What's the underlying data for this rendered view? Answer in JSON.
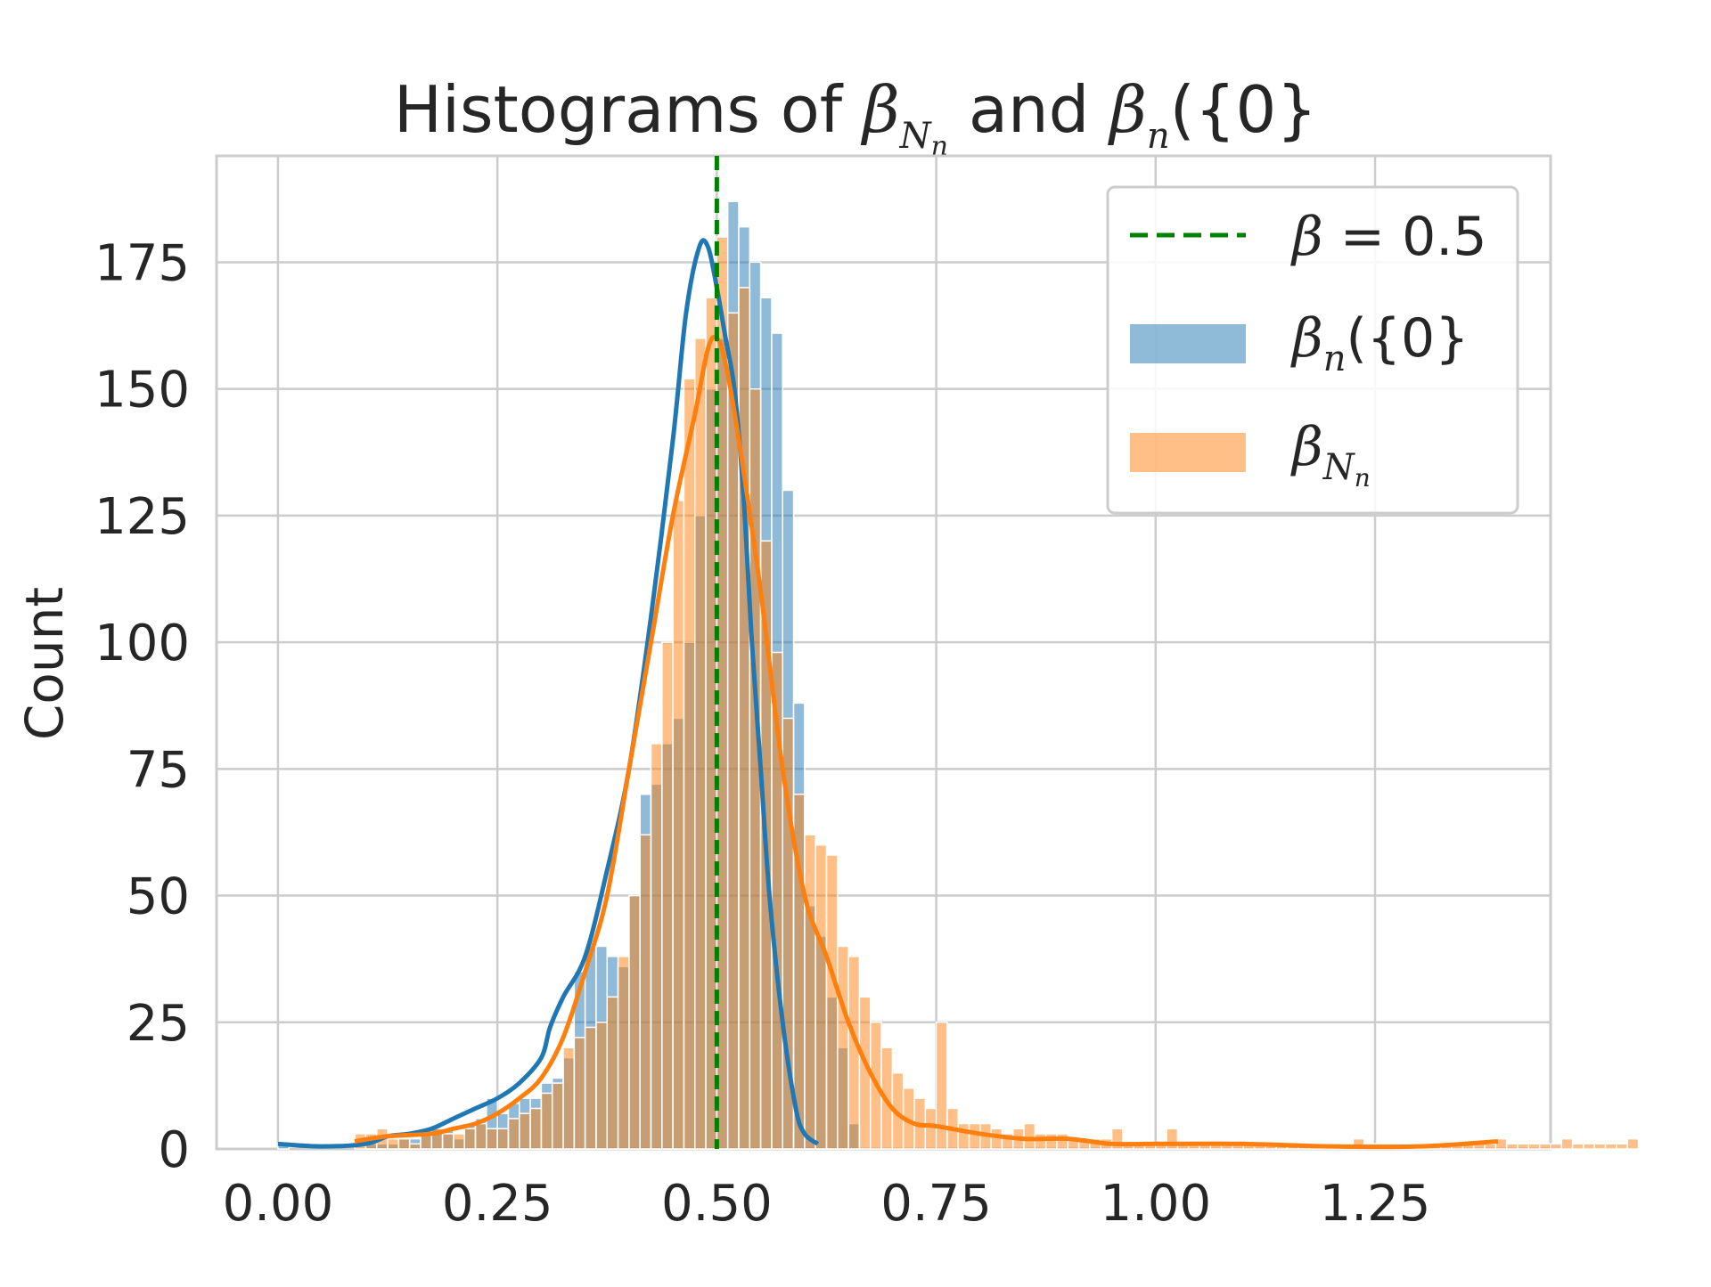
{
  "chart_data": {
    "type": "bar",
    "title": {
      "prefix": "Histograms of ",
      "sym1": "β",
      "sub1": "N",
      "subsub1": "n",
      "middle": " and ",
      "sym2": "β",
      "sub2": "n",
      "suffix": "({0}"
    },
    "xlabel": "",
    "ylabel": "Count",
    "xlim": [
      -0.07,
      1.45
    ],
    "ylim": [
      0,
      196
    ],
    "x_ticks": [
      "0.00",
      "0.25",
      "0.50",
      "0.75",
      "1.00",
      "1.25"
    ],
    "x_tick_values": [
      0.0,
      0.25,
      0.5,
      0.75,
      1.0,
      1.25
    ],
    "y_ticks": [
      "0",
      "25",
      "50",
      "75",
      "100",
      "125",
      "150",
      "175"
    ],
    "y_tick_values": [
      0,
      25,
      50,
      75,
      100,
      125,
      150,
      175
    ],
    "grid": true,
    "legend_position": "top-right",
    "reference_line": {
      "x": 0.5,
      "label_sym": "β",
      "label_rest": " = 0.5",
      "color": "#008000"
    },
    "series": [
      {
        "name_sym": "β",
        "name_sub": "n",
        "name_suffix": "({0}",
        "color": "#1f77b4",
        "bin_start": 0.0,
        "bin_width": 0.0125,
        "counts": [
          1,
          0,
          0,
          0,
          0,
          0,
          0,
          0,
          1,
          1,
          1,
          2,
          2,
          3,
          4,
          4,
          2,
          5,
          6,
          10,
          7,
          9,
          10,
          10,
          13,
          14,
          18,
          35,
          40,
          40,
          38,
          36,
          50,
          70,
          72,
          80,
          85,
          100,
          125,
          150,
          160,
          187,
          182,
          175,
          168,
          161,
          130,
          88,
          48,
          42,
          30,
          20,
          5,
          0,
          0
        ],
        "kde": [
          [
            0.0,
            1
          ],
          [
            0.05,
            0.5
          ],
          [
            0.1,
            1
          ],
          [
            0.125,
            2.5
          ],
          [
            0.15,
            3
          ],
          [
            0.175,
            4
          ],
          [
            0.2,
            6
          ],
          [
            0.225,
            8
          ],
          [
            0.25,
            10
          ],
          [
            0.275,
            13
          ],
          [
            0.3,
            18
          ],
          [
            0.31,
            24
          ],
          [
            0.325,
            30
          ],
          [
            0.35,
            38
          ],
          [
            0.375,
            55
          ],
          [
            0.4,
            75
          ],
          [
            0.425,
            105
          ],
          [
            0.45,
            140
          ],
          [
            0.465,
            165
          ],
          [
            0.48,
            178
          ],
          [
            0.49,
            178
          ],
          [
            0.5,
            170
          ],
          [
            0.51,
            160
          ],
          [
            0.52,
            150
          ],
          [
            0.53,
            130
          ],
          [
            0.54,
            100
          ],
          [
            0.55,
            75
          ],
          [
            0.56,
            50
          ],
          [
            0.575,
            25
          ],
          [
            0.59,
            8
          ],
          [
            0.6,
            3
          ],
          [
            0.615,
            1
          ]
        ]
      },
      {
        "name_sym": "β",
        "name_sub": "N",
        "name_subsub": "n",
        "color": "#ff7f0e",
        "bin_start": 0.0875,
        "bin_width": 0.0125,
        "counts": [
          3,
          3,
          4,
          2,
          2,
          1,
          3,
          4,
          3,
          3,
          4,
          5,
          4,
          4,
          6,
          7,
          8,
          11,
          13,
          20,
          22,
          24,
          25,
          30,
          38,
          50,
          62,
          80,
          100,
          128,
          152,
          160,
          168,
          180,
          165,
          170,
          150,
          120,
          98,
          85,
          70,
          62,
          60,
          58,
          40,
          38,
          30,
          25,
          20,
          15,
          12,
          10,
          8,
          25,
          8,
          5,
          5,
          5,
          4,
          3,
          4,
          5,
          3,
          3,
          3,
          2,
          2,
          2,
          2,
          4,
          1,
          1,
          1,
          1,
          4,
          1,
          1,
          1,
          1,
          1,
          1,
          1,
          1,
          1,
          1,
          1,
          1,
          1,
          1,
          1,
          1,
          2,
          1,
          1,
          1,
          1,
          1,
          1,
          1,
          1,
          1,
          1,
          1,
          1,
          2,
          1,
          1,
          1,
          1,
          1,
          2,
          1,
          1,
          1,
          1,
          1,
          2
        ],
        "kde": [
          [
            0.0875,
            1.5
          ],
          [
            0.125,
            2.5
          ],
          [
            0.175,
            3
          ],
          [
            0.2,
            4
          ],
          [
            0.225,
            5
          ],
          [
            0.25,
            7
          ],
          [
            0.275,
            10
          ],
          [
            0.3,
            14
          ],
          [
            0.325,
            22
          ],
          [
            0.35,
            35
          ],
          [
            0.375,
            50
          ],
          [
            0.4,
            75
          ],
          [
            0.425,
            100
          ],
          [
            0.45,
            125
          ],
          [
            0.475,
            145
          ],
          [
            0.49,
            158
          ],
          [
            0.5,
            160
          ],
          [
            0.51,
            155
          ],
          [
            0.525,
            140
          ],
          [
            0.55,
            110
          ],
          [
            0.575,
            75
          ],
          [
            0.6,
            50
          ],
          [
            0.625,
            38
          ],
          [
            0.65,
            25
          ],
          [
            0.675,
            15
          ],
          [
            0.7,
            8
          ],
          [
            0.725,
            5
          ],
          [
            0.75,
            4.5
          ],
          [
            0.8,
            3
          ],
          [
            0.85,
            2
          ],
          [
            0.9,
            2
          ],
          [
            0.95,
            1
          ],
          [
            1.0,
            1
          ],
          [
            1.1,
            1
          ],
          [
            1.2,
            0.5
          ],
          [
            1.3,
            0.5
          ],
          [
            1.39,
            1.5
          ]
        ]
      }
    ]
  }
}
